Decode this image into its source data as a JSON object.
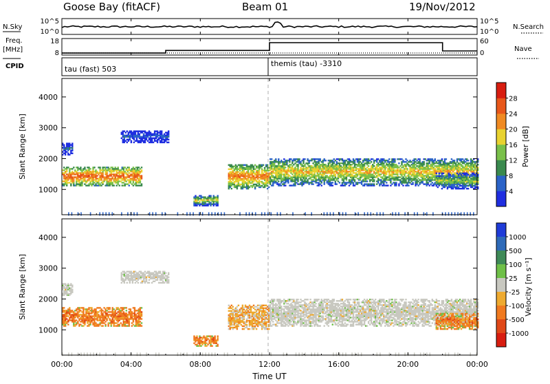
{
  "header": {
    "station": "Goose Bay (fitACF)",
    "beam": "Beam 01",
    "date": "19/Nov/2012"
  },
  "summary": {
    "left_labels": {
      "nsky": "N.Sky",
      "freq": "Freq.",
      "mhz": "[MHz]",
      "cpid": "CPID"
    },
    "right_labels": {
      "nsearch": "N.Search",
      "nave": "Nave"
    },
    "nsky_ticks": {
      "top": "10^5",
      "bottom": "10^0"
    },
    "nsearch_ticks": {
      "top": "10^5",
      "bottom": "10^0"
    },
    "freq_ticks": {
      "top": "18",
      "bottom": "8"
    },
    "nave_ticks": {
      "top": "60",
      "bottom": "0"
    },
    "cpid_segments": [
      {
        "label": "tau (fast) 503",
        "start_hour": 0
      },
      {
        "label": "themis (tau) -3310",
        "start_hour": 12
      }
    ],
    "freq_steps": [
      {
        "start_hour": 0,
        "end_hour": 6,
        "value": 9.2
      },
      {
        "start_hour": 6,
        "end_hour": 12,
        "value": 10.8
      },
      {
        "start_hour": 12,
        "end_hour": 22,
        "value": 15.5
      },
      {
        "start_hour": 22,
        "end_hour": 24,
        "value": 10.5
      }
    ]
  },
  "time_axis": {
    "label": "Time UT",
    "ticks": [
      "00:00",
      "04:00",
      "08:00",
      "12:00",
      "16:00",
      "20:00",
      "00:00"
    ],
    "tick_hours": [
      0,
      4,
      8,
      12,
      16,
      20,
      24
    ],
    "range_hours": [
      0,
      24
    ]
  },
  "panels": [
    {
      "key": "power",
      "ylabel": "Slant Range [km]",
      "yticks": [
        "1000",
        "2000",
        "3000",
        "4000"
      ],
      "ytick_values": [
        1000,
        2000,
        3000,
        4000
      ],
      "ylim": [
        180,
        4600
      ],
      "colorbar": {
        "title": "Power [dB]",
        "labels": [
          "4",
          "8",
          "12",
          "16",
          "20",
          "24",
          "28"
        ],
        "colors": [
          "#1f2ee0",
          "#2b63c8",
          "#3a8a4e",
          "#79c04a",
          "#e8d230",
          "#f08a22",
          "#e8571a",
          "#d81d10"
        ]
      }
    },
    {
      "key": "velocity",
      "ylabel": "Slant Range [km]",
      "yticks": [
        "1000",
        "2000",
        "3000",
        "4000"
      ],
      "ytick_values": [
        1000,
        2000,
        3000,
        4000
      ],
      "ylim": [
        180,
        4600
      ],
      "colorbar": {
        "title": "Velocity [m s⁻¹]",
        "labels": [
          "1000",
          "500",
          "100",
          "25",
          "-25",
          "-100",
          "-500",
          "-1000"
        ],
        "colors": [
          "#1f3cd8",
          "#2e6ab8",
          "#3f8a58",
          "#6fc048",
          "#c8c8c0",
          "#eeaa30",
          "#f07a20",
          "#e04818",
          "#d81d10"
        ]
      }
    }
  ],
  "chart_data": {
    "type": "heatmap",
    "title": "Goose Bay (fitACF) Beam 01 19/Nov/2012",
    "xlabel": "Time UT",
    "ylabel": "Slant Range [km]",
    "x_range_hours": [
      0,
      24
    ],
    "y_range_km": [
      180,
      4600
    ],
    "series": [
      {
        "name": "Power [dB]",
        "kind": "echo-regions",
        "regions": [
          {
            "t0": 0.0,
            "t1": 4.6,
            "r0": 1100,
            "r1": 1700,
            "core_dB": 24
          },
          {
            "t0": 0.0,
            "t1": 0.6,
            "r0": 2100,
            "r1": 2500,
            "core_dB": 6
          },
          {
            "t0": 3.4,
            "t1": 6.2,
            "r0": 2500,
            "r1": 2900,
            "core_dB": 5
          },
          {
            "t0": 7.6,
            "t1": 9.0,
            "r0": 450,
            "r1": 800,
            "core_dB": 16
          },
          {
            "t0": 9.6,
            "t1": 12.0,
            "r0": 1000,
            "r1": 1800,
            "core_dB": 22
          },
          {
            "t0": 12.0,
            "t1": 24.0,
            "r0": 1100,
            "r1": 2000,
            "core_dB": 18
          },
          {
            "t0": 21.6,
            "t1": 24.0,
            "r0": 1000,
            "r1": 1500,
            "core_dB": 14
          }
        ]
      },
      {
        "name": "Velocity [m s⁻¹]",
        "kind": "echo-regions",
        "regions": [
          {
            "t0": 0.0,
            "t1": 4.6,
            "r0": 1100,
            "r1": 1700,
            "core_ms": -300
          },
          {
            "t0": 0.0,
            "t1": 0.6,
            "r0": 2100,
            "r1": 2500,
            "core_ms": 0
          },
          {
            "t0": 3.4,
            "t1": 6.2,
            "r0": 2500,
            "r1": 2900,
            "core_ms": 0
          },
          {
            "t0": 7.6,
            "t1": 9.0,
            "r0": 450,
            "r1": 800,
            "core_ms": -300
          },
          {
            "t0": 9.6,
            "t1": 12.0,
            "r0": 1000,
            "r1": 1800,
            "core_ms": -150
          },
          {
            "t0": 12.0,
            "t1": 24.0,
            "r0": 1100,
            "r1": 2000,
            "core_ms": 0
          },
          {
            "t0": 21.6,
            "t1": 24.0,
            "r0": 1000,
            "r1": 1500,
            "core_ms": -300
          }
        ]
      }
    ]
  }
}
